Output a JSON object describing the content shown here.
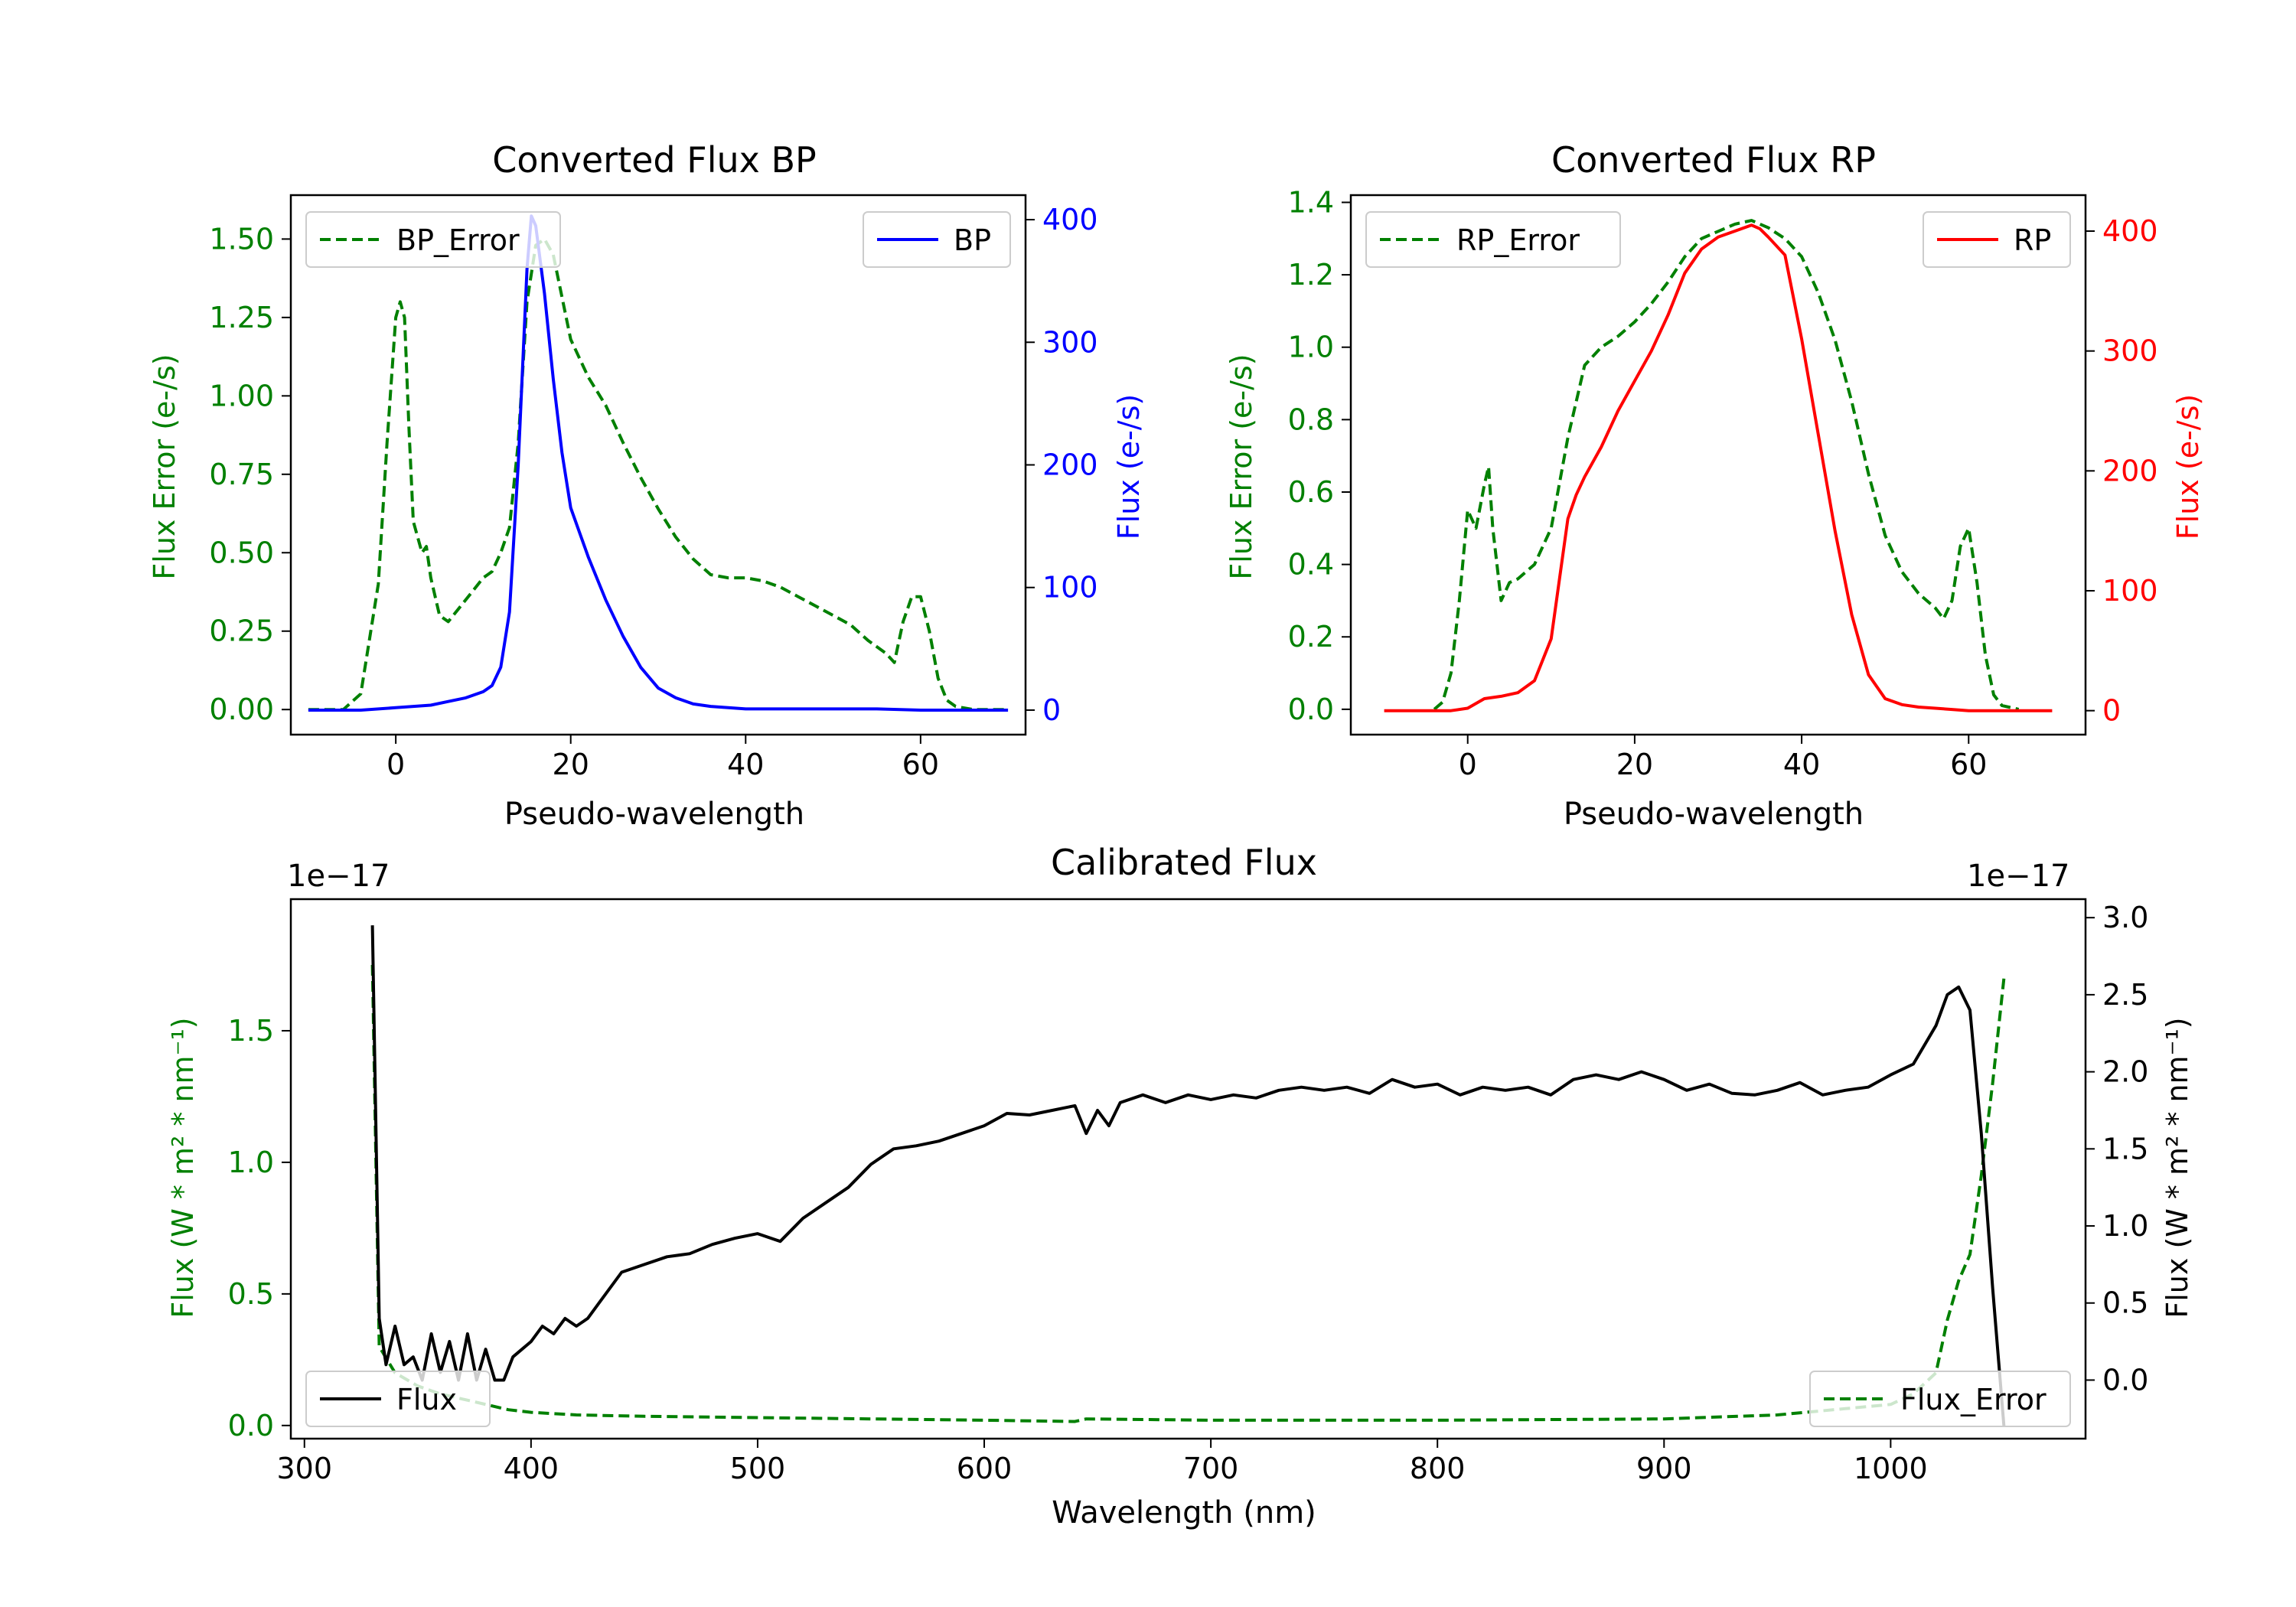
{
  "chart_data": [
    {
      "id": "bp",
      "type": "line",
      "title": "Converted Flux BP",
      "xlabel": "Pseudo-wavelength",
      "ylabel_left": "Flux Error (e-/s)",
      "ylabel_right": "Flux (e-/s)",
      "xlim": [
        -12,
        72
      ],
      "ylim_left": [
        -0.08,
        1.64
      ],
      "ylim_right": [
        -20,
        420
      ],
      "xticks": [
        0,
        20,
        40,
        60
      ],
      "yticks_left": [
        "0.00",
        "0.25",
        "0.50",
        "0.75",
        "1.00",
        "1.25",
        "1.50"
      ],
      "yticks_right": [
        0,
        100,
        200,
        300,
        400
      ],
      "colors": {
        "left": "#008000",
        "right": "#0000ff",
        "axis": "#000000"
      },
      "legend_left": "BP_Error",
      "legend_right": "BP",
      "series": [
        {
          "name": "BP_Error",
          "axis": "left",
          "style": "dashed",
          "color": "#008000",
          "x": [
            -10,
            -6,
            -4,
            -2,
            -1,
            0,
            0.5,
            1,
            1.5,
            2,
            3,
            3.5,
            4,
            5,
            6,
            8,
            10,
            11,
            12,
            13,
            14,
            15,
            16,
            17,
            18,
            20,
            22,
            24,
            26,
            28,
            30,
            32,
            34,
            36,
            38,
            40,
            42,
            44,
            46,
            48,
            50,
            52,
            54,
            56,
            57,
            58,
            59,
            60,
            61,
            62,
            63,
            64,
            66,
            70
          ],
          "values": [
            0,
            0,
            0.05,
            0.4,
            0.85,
            1.25,
            1.3,
            1.25,
            0.9,
            0.6,
            0.5,
            0.52,
            0.42,
            0.3,
            0.28,
            0.35,
            0.42,
            0.44,
            0.5,
            0.58,
            0.85,
            1.3,
            1.48,
            1.5,
            1.45,
            1.18,
            1.06,
            0.97,
            0.85,
            0.74,
            0.64,
            0.55,
            0.48,
            0.43,
            0.42,
            0.42,
            0.41,
            0.39,
            0.36,
            0.33,
            0.3,
            0.27,
            0.22,
            0.18,
            0.15,
            0.28,
            0.36,
            0.36,
            0.25,
            0.1,
            0.03,
            0.01,
            0,
            0
          ]
        },
        {
          "name": "BP",
          "axis": "right",
          "style": "solid",
          "color": "#0000ff",
          "x": [
            -10,
            -4,
            0,
            4,
            6,
            8,
            10,
            11,
            12,
            13,
            14,
            15,
            15.5,
            16,
            17,
            18,
            19,
            20,
            22,
            24,
            26,
            28,
            30,
            32,
            34,
            36,
            38,
            40,
            45,
            50,
            55,
            60,
            64,
            70
          ],
          "values": [
            0,
            0,
            2,
            4,
            7,
            10,
            15,
            20,
            35,
            80,
            200,
            360,
            403,
            395,
            340,
            270,
            210,
            165,
            125,
            90,
            60,
            35,
            18,
            10,
            5,
            3,
            2,
            1,
            1,
            1,
            1,
            0,
            0,
            0
          ]
        }
      ]
    },
    {
      "id": "rp",
      "type": "line",
      "title": "Converted Flux RP",
      "xlabel": "Pseudo-wavelength",
      "ylabel_left": "Flux Error (e-/s)",
      "ylabel_right": "Flux (e-/s)",
      "xlim": [
        -14,
        74
      ],
      "ylim_left": [
        -0.07,
        1.42
      ],
      "ylim_right": [
        -20,
        430
      ],
      "xticks": [
        0,
        20,
        40,
        60
      ],
      "yticks_left": [
        "0.0",
        "0.2",
        "0.4",
        "0.6",
        "0.8",
        "1.0",
        "1.2",
        "1.4"
      ],
      "yticks_right": [
        0,
        100,
        200,
        300,
        400
      ],
      "colors": {
        "left": "#008000",
        "right": "#ff0000",
        "axis": "#000000"
      },
      "legend_left": "RP_Error",
      "legend_right": "RP",
      "series": [
        {
          "name": "RP_Error",
          "axis": "left",
          "style": "dashed",
          "color": "#008000",
          "x": [
            -4,
            -3,
            -2,
            -1,
            0,
            1,
            2,
            2.5,
            3,
            4,
            5,
            6,
            8,
            10,
            12,
            14,
            16,
            18,
            20,
            22,
            24,
            26,
            28,
            30,
            32,
            34,
            36,
            38,
            40,
            42,
            44,
            46,
            48,
            50,
            52,
            54,
            56,
            57,
            58,
            59,
            60,
            61,
            62,
            63,
            64,
            66
          ],
          "values": [
            0,
            0.02,
            0.1,
            0.3,
            0.55,
            0.5,
            0.62,
            0.67,
            0.5,
            0.3,
            0.35,
            0.36,
            0.4,
            0.5,
            0.75,
            0.95,
            1.0,
            1.03,
            1.07,
            1.12,
            1.18,
            1.25,
            1.3,
            1.32,
            1.34,
            1.35,
            1.33,
            1.3,
            1.25,
            1.15,
            1.02,
            0.85,
            0.65,
            0.48,
            0.38,
            0.32,
            0.28,
            0.25,
            0.3,
            0.45,
            0.5,
            0.35,
            0.15,
            0.04,
            0.01,
            0
          ]
        },
        {
          "name": "RP",
          "axis": "right",
          "style": "solid",
          "color": "#ff0000",
          "x": [
            -10,
            -2,
            0,
            2,
            4,
            6,
            8,
            10,
            11,
            12,
            13,
            14,
            16,
            18,
            20,
            22,
            24,
            26,
            28,
            30,
            32,
            34,
            35,
            36,
            38,
            40,
            42,
            44,
            46,
            48,
            50,
            52,
            54,
            56,
            58,
            60,
            62,
            70
          ],
          "values": [
            0,
            0,
            2,
            10,
            12,
            15,
            25,
            60,
            110,
            160,
            180,
            195,
            220,
            250,
            275,
            300,
            330,
            365,
            385,
            395,
            400,
            405,
            402,
            395,
            380,
            310,
            230,
            150,
            80,
            30,
            10,
            5,
            3,
            2,
            1,
            0,
            0,
            0
          ]
        }
      ]
    },
    {
      "id": "cal",
      "type": "line",
      "title": "Calibrated Flux",
      "xlabel": "Wavelength (nm)",
      "ylabel_left": "Flux (W * m² * nm⁻¹)",
      "ylabel_right": "Flux (W * m² * nm⁻¹)",
      "scale_left": "1e−17",
      "scale_right": "1e−17",
      "xlim": [
        294,
        1086
      ],
      "ylim_left": [
        -0.05,
        2.0
      ],
      "ylim_right": [
        -0.38,
        3.12
      ],
      "xticks": [
        300,
        400,
        500,
        600,
        700,
        800,
        900,
        1000
      ],
      "yticks_left": [
        "0.0",
        "0.5",
        "1.0",
        "1.5"
      ],
      "yticks_right": [
        "0.0",
        "0.5",
        "1.0",
        "1.5",
        "2.0",
        "2.5",
        "3.0"
      ],
      "colors": {
        "left": "#008000",
        "right": "#000000",
        "axis": "#000000"
      },
      "legend_left": "Flux",
      "legend_right": "Flux_Error",
      "series": [
        {
          "name": "Flux_Error",
          "axis": "left",
          "style": "dashed",
          "color": "#008000",
          "x": [
            330,
            333,
            340,
            350,
            360,
            370,
            380,
            390,
            400,
            420,
            450,
            500,
            550,
            600,
            640,
            645,
            700,
            800,
            900,
            950,
            1000,
            1010,
            1020,
            1025,
            1030,
            1035,
            1040,
            1045,
            1050
          ],
          "values": [
            1.75,
            0.3,
            0.2,
            0.15,
            0.12,
            0.1,
            0.08,
            0.06,
            0.05,
            0.04,
            0.035,
            0.03,
            0.025,
            0.02,
            0.015,
            0.025,
            0.02,
            0.02,
            0.025,
            0.04,
            0.08,
            0.12,
            0.2,
            0.4,
            0.55,
            0.65,
            0.95,
            1.3,
            1.7
          ]
        },
        {
          "name": "Flux",
          "axis": "right",
          "style": "solid",
          "color": "#000000",
          "x": [
            330,
            333,
            336,
            340,
            344,
            348,
            352,
            356,
            360,
            364,
            368,
            372,
            376,
            380,
            384,
            388,
            392,
            396,
            400,
            405,
            410,
            415,
            420,
            425,
            430,
            440,
            450,
            460,
            470,
            480,
            490,
            500,
            510,
            520,
            530,
            540,
            550,
            560,
            570,
            580,
            590,
            600,
            610,
            620,
            630,
            640,
            645,
            650,
            655,
            660,
            670,
            680,
            690,
            700,
            710,
            720,
            730,
            740,
            750,
            760,
            770,
            780,
            790,
            800,
            810,
            820,
            830,
            840,
            850,
            860,
            870,
            880,
            890,
            900,
            910,
            920,
            930,
            940,
            950,
            960,
            970,
            980,
            990,
            1000,
            1010,
            1020,
            1025,
            1030,
            1035,
            1040,
            1045,
            1050
          ],
          "values": [
            2.95,
            0.4,
            0.1,
            0.35,
            0.1,
            0.15,
            0.0,
            0.3,
            0.05,
            0.25,
            0.0,
            0.3,
            0.0,
            0.2,
            0.0,
            0.0,
            0.15,
            0.2,
            0.25,
            0.35,
            0.3,
            0.4,
            0.35,
            0.4,
            0.5,
            0.7,
            0.75,
            0.8,
            0.82,
            0.88,
            0.92,
            0.95,
            0.9,
            1.05,
            1.15,
            1.25,
            1.4,
            1.5,
            1.52,
            1.55,
            1.6,
            1.65,
            1.73,
            1.72,
            1.75,
            1.78,
            1.6,
            1.75,
            1.65,
            1.8,
            1.85,
            1.8,
            1.85,
            1.82,
            1.85,
            1.83,
            1.88,
            1.9,
            1.88,
            1.9,
            1.86,
            1.95,
            1.9,
            1.92,
            1.85,
            1.9,
            1.88,
            1.9,
            1.85,
            1.95,
            1.98,
            1.95,
            2.0,
            1.95,
            1.88,
            1.92,
            1.86,
            1.85,
            1.88,
            1.93,
            1.85,
            1.88,
            1.9,
            1.98,
            2.05,
            2.3,
            2.5,
            2.55,
            2.4,
            1.6,
            0.6,
            -0.3
          ]
        }
      ]
    }
  ]
}
